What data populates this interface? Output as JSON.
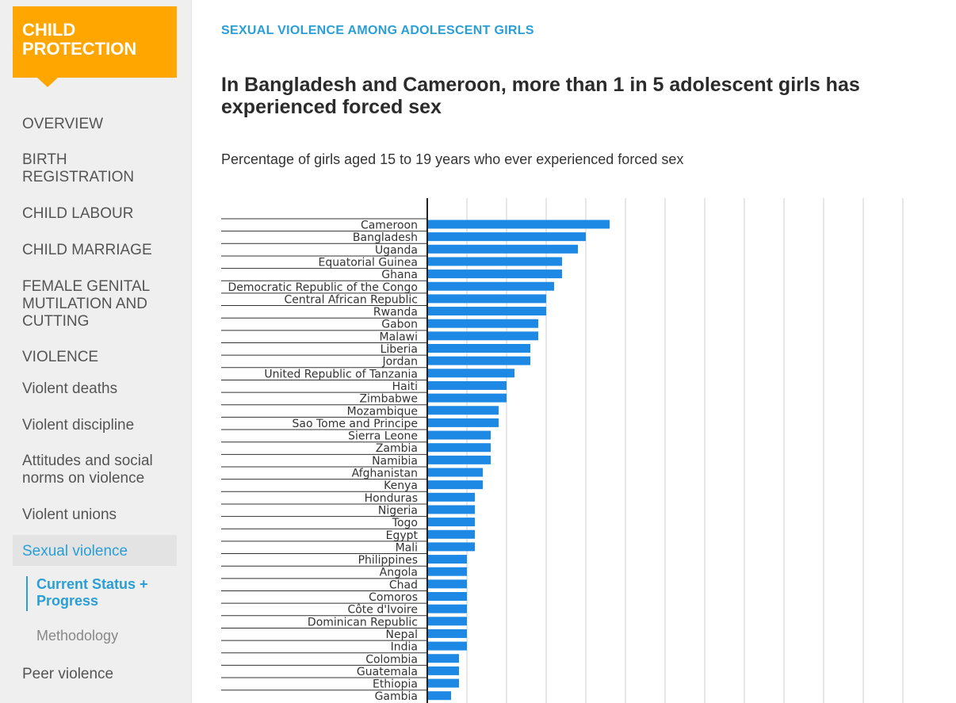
{
  "sidebar": {
    "brand": {
      "line1": "CHILD",
      "line2": "PROTECTION"
    },
    "items": [
      {
        "label": "OVERVIEW",
        "name": "nav-overview"
      },
      {
        "label": "BIRTH\nREGISTRATION",
        "name": "nav-birth-registration"
      },
      {
        "label": "CHILD LABOUR",
        "name": "nav-child-labour"
      },
      {
        "label": "CHILD MARRIAGE",
        "name": "nav-child-marriage"
      },
      {
        "label": "FEMALE GENITAL\nMUTILATION AND\nCUTTING",
        "name": "nav-fgm"
      },
      {
        "label": "VIOLENCE",
        "name": "nav-violence"
      },
      {
        "label": "Violent deaths",
        "name": "nav-violent-deaths"
      },
      {
        "label": "Violent discipline",
        "name": "nav-violent-discipline"
      },
      {
        "label": "Attitudes and social\nnorms on violence",
        "name": "nav-attitudes"
      },
      {
        "label": "Violent unions",
        "name": "nav-violent-unions"
      },
      {
        "label": "Sexual violence",
        "name": "nav-sexual-violence"
      },
      {
        "label": "Peer violence",
        "name": "nav-peer-violence"
      }
    ],
    "sub_items": [
      {
        "label": "Current Status +\nProgress",
        "name": "subnav-current-status"
      },
      {
        "label": "Methodology",
        "name": "subnav-methodology"
      }
    ]
  },
  "main": {
    "kicker": "SEXUAL VIOLENCE AMONG ADOLESCENT GIRLS",
    "headline": "In Bangladesh and Cameroon, more than 1 in 5 adolescent girls has experienced forced sex",
    "subtitle": "Percentage of girls aged 15 to 19 years who ever experienced forced sex"
  },
  "colors": {
    "accent": "#2a9fd6",
    "brand": "#ffa600",
    "bar": "#1e88e5"
  },
  "chart_data": {
    "type": "bar",
    "orientation": "horizontal",
    "categories": [
      "Cameroon",
      "Bangladesh",
      "Uganda",
      "Equatorial Guinea",
      "Ghana",
      "Democratic Republic of the Congo",
      "Central African Republic",
      "Rwanda",
      "Gabon",
      "Malawi",
      "Liberia",
      "Jordan",
      "United Republic of Tanzania",
      "Haiti",
      "Zimbabwe",
      "Mozambique",
      "Sao Tome and Principe",
      "Sierra Leone",
      "Zambia",
      "Namibia",
      "Afghanistan",
      "Kenya",
      "Honduras",
      "Nigeria",
      "Togo",
      "Egypt",
      "Mali",
      "Philippines",
      "Angola",
      "Chad",
      "Comoros",
      "Côte d'Ivoire",
      "Dominican Republic",
      "Nepal",
      "India",
      "Colombia",
      "Guatemala",
      "Ethiopia",
      "Gambia"
    ],
    "values": [
      23,
      20,
      19,
      17,
      17,
      16,
      15,
      15,
      14,
      14,
      13,
      13,
      11,
      10,
      10,
      9,
      9,
      8,
      8,
      8,
      7,
      7,
      6,
      6,
      6,
      6,
      6,
      5,
      5,
      5,
      5,
      5,
      5,
      5,
      5,
      4,
      4,
      4,
      3
    ],
    "xlim": [
      0,
      60
    ],
    "grid": true
  }
}
